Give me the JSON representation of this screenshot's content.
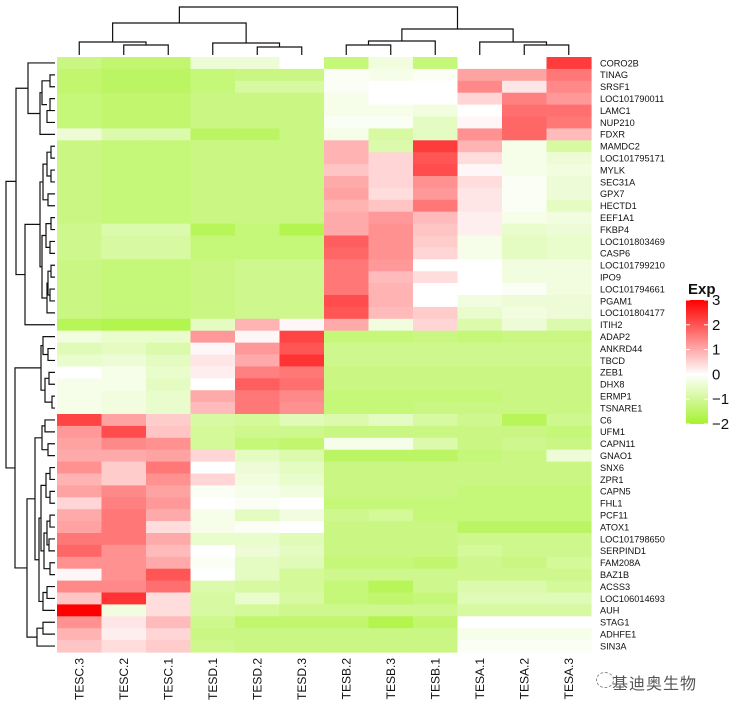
{
  "chart_data": {
    "type": "heatmap",
    "title": "",
    "legend": {
      "title": "Exp",
      "ticks": [
        3,
        2,
        1,
        0,
        -1,
        -2
      ],
      "range": [
        -2,
        3
      ],
      "placement": "right"
    },
    "colors": {
      "low": "#a6f230",
      "mid": "#ffffff",
      "high": "#ff0000"
    },
    "columns": [
      "TESC.3",
      "TESC.2",
      "TESC.1",
      "TESD.1",
      "TESD.2",
      "TESD.3",
      "TESB.2",
      "TESB.3",
      "TESB.1",
      "TESA.1",
      "TESA.2",
      "TESA.3"
    ],
    "rows": [
      "CORO2B",
      "TINAG",
      "SRSF1",
      "LOC101790011",
      "LAMC1",
      "NUP210",
      "FDXR",
      "MAMDC2",
      "LOC101795171",
      "MYLK",
      "SEC31A",
      "GPX7",
      "HECTD1",
      "EEF1A1",
      "FKBP4",
      "LOC101803469",
      "CASP6",
      "LOC101799210",
      "IPO9",
      "LOC101794661",
      "PGAM1",
      "LOC101804177",
      "ITIH2",
      "ADAP2",
      "ANKRD44",
      "TBCD",
      "ZEB1",
      "DHX8",
      "ERMP1",
      "TSNARE1",
      "C6",
      "UFM1",
      "CAPN11",
      "GNAO1",
      "SNX6",
      "ZPR1",
      "CAPN5",
      "FHL1",
      "PCF11",
      "ATOX1",
      "LOC101798650",
      "SERPIND1",
      "FAM208A",
      "BAZ1B",
      "ACSS3",
      "LOC106014693",
      "AUH",
      "STAG1",
      "ADHFE1",
      "SIN3A"
    ],
    "values": [
      [
        -1.2,
        -1.4,
        -1.4,
        -0.4,
        -0.4,
        0.0,
        -1.3,
        -0.3,
        -1.3,
        0.0,
        0.0,
        2.3
      ],
      [
        -1.4,
        -1.5,
        -1.5,
        -1.3,
        -1.2,
        -1.2,
        -0.1,
        -0.2,
        -0.1,
        1.1,
        1.1,
        1.6
      ],
      [
        -1.4,
        -1.5,
        -1.5,
        -1.3,
        -0.9,
        -0.9,
        -0.1,
        0.0,
        0.0,
        1.4,
        0.3,
        1.4
      ],
      [
        -1.3,
        -1.4,
        -1.4,
        -1.2,
        -1.2,
        -1.2,
        -0.2,
        0.0,
        0.0,
        0.5,
        1.5,
        1.2
      ],
      [
        -1.3,
        -1.4,
        -1.4,
        -1.2,
        -1.2,
        -1.2,
        -0.2,
        -0.2,
        -0.3,
        0.0,
        1.7,
        1.7
      ],
      [
        -1.3,
        -1.4,
        -1.4,
        -1.2,
        -1.2,
        -1.2,
        -0.1,
        -0.1,
        -0.6,
        0.1,
        1.8,
        1.6
      ],
      [
        -0.4,
        -0.8,
        -0.8,
        -1.5,
        -1.5,
        -1.2,
        -0.2,
        -0.9,
        -0.6,
        1.3,
        1.8,
        0.8
      ],
      [
        -1.2,
        -1.3,
        -1.3,
        -1.2,
        -1.2,
        -1.2,
        0.9,
        -0.8,
        2.3,
        0.9,
        -0.2,
        -0.9
      ],
      [
        -1.2,
        -1.3,
        -1.3,
        -1.2,
        -1.2,
        -1.2,
        0.9,
        0.5,
        2.0,
        0.4,
        -0.2,
        -0.4
      ],
      [
        -1.2,
        -1.3,
        -1.3,
        -1.2,
        -1.2,
        -1.2,
        0.7,
        0.5,
        2.1,
        0.1,
        -0.2,
        -0.3
      ],
      [
        -1.2,
        -1.3,
        -1.3,
        -1.2,
        -1.2,
        -1.2,
        1.0,
        0.5,
        1.3,
        0.4,
        -0.1,
        -0.4
      ],
      [
        -1.2,
        -1.3,
        -1.3,
        -1.2,
        -1.2,
        -1.2,
        1.1,
        0.4,
        1.2,
        0.3,
        -0.1,
        -0.4
      ],
      [
        -1.2,
        -1.3,
        -1.3,
        -1.2,
        -1.2,
        -1.2,
        0.9,
        0.7,
        1.6,
        0.3,
        -0.1,
        -0.6
      ],
      [
        -1.2,
        -1.3,
        -1.3,
        -1.2,
        -1.2,
        -1.2,
        1.0,
        1.2,
        0.8,
        0.2,
        -0.2,
        -0.3
      ],
      [
        -1.1,
        -0.8,
        -0.8,
        -1.6,
        -1.3,
        -1.7,
        1.0,
        1.3,
        0.7,
        0.2,
        -0.5,
        -0.4
      ],
      [
        -1.1,
        -0.9,
        -0.9,
        -1.3,
        -1.3,
        -1.3,
        1.9,
        1.3,
        0.6,
        -0.2,
        -0.6,
        -0.5
      ],
      [
        -1.1,
        -0.9,
        -0.9,
        -1.3,
        -1.3,
        -1.3,
        1.8,
        1.3,
        0.5,
        -0.2,
        -0.6,
        -0.5
      ],
      [
        -1.2,
        -1.3,
        -1.3,
        -1.2,
        -1.1,
        -1.1,
        1.6,
        1.2,
        0.0,
        0.0,
        -0.3,
        -0.3
      ],
      [
        -1.2,
        -1.3,
        -1.3,
        -1.2,
        -1.1,
        -1.1,
        1.6,
        0.8,
        0.4,
        0.0,
        -0.3,
        -0.3
      ],
      [
        -1.2,
        -1.3,
        -1.3,
        -1.2,
        -1.1,
        -1.1,
        1.6,
        0.9,
        0.0,
        0.0,
        -0.1,
        -0.3
      ],
      [
        -1.2,
        -1.3,
        -1.3,
        -1.2,
        -1.1,
        -1.1,
        2.1,
        0.9,
        0.0,
        -0.3,
        -0.4,
        -0.4
      ],
      [
        -1.2,
        -1.3,
        -1.3,
        -1.2,
        -1.1,
        -1.1,
        2.0,
        0.8,
        0.6,
        -0.5,
        -0.3,
        -0.4
      ],
      [
        -1.6,
        -1.7,
        -1.7,
        -0.6,
        0.9,
        0.1,
        1.0,
        -0.3,
        0.5,
        -0.8,
        -0.4,
        -0.8
      ],
      [
        -0.3,
        -0.5,
        -0.5,
        1.2,
        0.1,
        2.2,
        -1.3,
        -1.3,
        -1.2,
        -1.3,
        -1.2,
        -1.2
      ],
      [
        -0.7,
        -0.6,
        -0.8,
        0.1,
        1.2,
        2.0,
        -1.1,
        -1.1,
        -1.1,
        -1.1,
        -1.1,
        -1.1
      ],
      [
        -0.5,
        -0.4,
        -0.6,
        0.3,
        1.0,
        2.4,
        -1.1,
        -1.1,
        -1.1,
        -1.1,
        -1.1,
        -1.1
      ],
      [
        0.0,
        -0.2,
        -0.5,
        0.2,
        1.5,
        1.6,
        -1.2,
        -1.2,
        -1.2,
        -1.2,
        -1.2,
        -1.2
      ],
      [
        -0.2,
        -0.2,
        -0.6,
        0.0,
        1.9,
        1.7,
        -1.2,
        -1.2,
        -1.2,
        -1.2,
        -1.2,
        -1.2
      ],
      [
        -0.2,
        -0.3,
        -0.5,
        1.0,
        1.6,
        1.4,
        -1.3,
        -1.3,
        -1.3,
        -1.3,
        -1.2,
        -1.2
      ],
      [
        -0.2,
        -0.3,
        -0.5,
        0.8,
        1.6,
        1.3,
        -1.3,
        -1.3,
        -1.2,
        -1.2,
        -1.2,
        -1.2
      ],
      [
        2.2,
        1.1,
        0.6,
        -0.9,
        -1.0,
        -0.7,
        -0.8,
        -0.6,
        -0.9,
        -1.1,
        -1.6,
        -1.1
      ],
      [
        1.2,
        2.1,
        0.7,
        -1.0,
        -1.1,
        -1.1,
        -1.2,
        -1.2,
        -1.2,
        -1.2,
        -1.2,
        -1.3
      ],
      [
        1.1,
        1.4,
        1.3,
        -1.0,
        -1.3,
        -1.4,
        -0.2,
        -0.2,
        -0.8,
        -1.2,
        -1.1,
        -1.2
      ],
      [
        1.0,
        1.0,
        1.1,
        0.5,
        -0.6,
        -0.8,
        -1.5,
        -1.5,
        -1.5,
        -1.3,
        -1.2,
        -0.4
      ],
      [
        1.3,
        0.6,
        1.6,
        0.0,
        -0.4,
        -0.6,
        -1.2,
        -1.2,
        -1.2,
        -1.2,
        -1.2,
        -1.2
      ],
      [
        0.9,
        0.6,
        1.3,
        0.5,
        -0.3,
        -0.5,
        -1.2,
        -1.2,
        -1.2,
        -1.2,
        -1.2,
        -1.2
      ],
      [
        1.1,
        1.4,
        1.1,
        -0.1,
        -0.2,
        -0.3,
        -1.2,
        -1.2,
        -1.2,
        -1.3,
        -1.3,
        -1.3
      ],
      [
        0.5,
        1.5,
        1.2,
        0.0,
        -0.1,
        0.0,
        -1.3,
        -1.3,
        -1.3,
        -1.3,
        -1.3,
        -1.3
      ],
      [
        1.0,
        1.6,
        1.0,
        -0.2,
        -0.6,
        -0.3,
        -1.1,
        -1.0,
        -1.3,
        -1.3,
        -1.3,
        -1.3
      ],
      [
        1.1,
        1.6,
        0.4,
        -0.2,
        -0.1,
        0.0,
        -1.2,
        -1.2,
        -1.2,
        -1.5,
        -1.5,
        -1.5
      ],
      [
        1.6,
        1.6,
        1.0,
        -0.5,
        -0.5,
        -0.7,
        -1.2,
        -1.2,
        -1.2,
        -1.1,
        -1.1,
        -1.1
      ],
      [
        1.8,
        1.3,
        0.8,
        0.0,
        -0.4,
        -0.6,
        -1.2,
        -1.2,
        -1.2,
        -1.0,
        -1.1,
        -1.1
      ],
      [
        1.3,
        1.3,
        1.0,
        -0.1,
        -0.6,
        -0.7,
        -1.3,
        -1.3,
        -1.4,
        -1.1,
        -1.2,
        -1.0
      ],
      [
        0.1,
        1.3,
        2.0,
        0.0,
        -0.6,
        -1.0,
        -1.1,
        -1.1,
        -1.1,
        -1.1,
        -1.1,
        -1.1
      ],
      [
        1.4,
        1.4,
        1.7,
        -0.8,
        -0.9,
        -1.0,
        -1.3,
        -1.6,
        -1.1,
        -0.8,
        -0.8,
        -1.0
      ],
      [
        0.7,
        2.4,
        0.4,
        -0.9,
        -0.5,
        -0.9,
        -1.3,
        -1.4,
        -1.3,
        -0.7,
        -0.7,
        -0.7
      ],
      [
        3.0,
        -0.3,
        0.4,
        -0.9,
        -1.0,
        -1.1,
        -1.1,
        -1.1,
        -1.1,
        -0.9,
        -0.9,
        -0.9
      ],
      [
        1.3,
        0.3,
        0.8,
        -1.1,
        -1.4,
        -1.4,
        -1.4,
        -1.7,
        -1.4,
        0.0,
        0.0,
        0.0
      ],
      [
        0.9,
        0.2,
        0.5,
        -1.2,
        -1.2,
        -1.2,
        -1.2,
        -1.2,
        -1.2,
        -0.2,
        -0.2,
        -0.2
      ],
      [
        0.7,
        0.4,
        0.6,
        -1.1,
        -1.2,
        -1.2,
        -1.2,
        -1.2,
        -1.2,
        -0.1,
        -0.1,
        -0.1
      ]
    ]
  },
  "watermark": {
    "text": "基迪奥生物"
  }
}
